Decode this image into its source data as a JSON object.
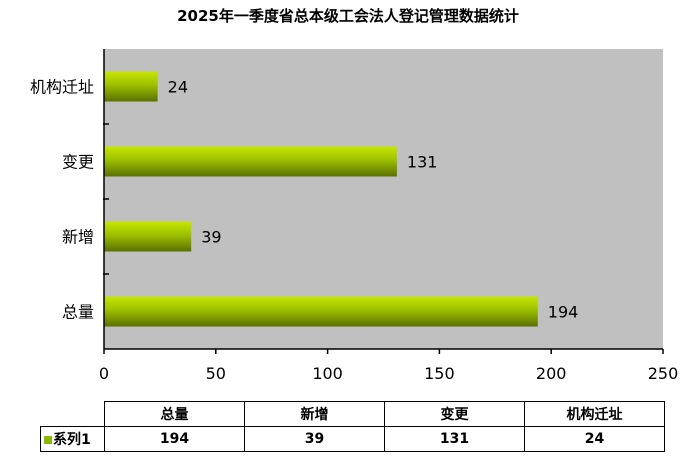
{
  "chart_data": {
    "type": "bar",
    "orientation": "horizontal",
    "title": "2025年一季度省总本级工会法人登记管理数据统计",
    "categories": [
      "总量",
      "新增",
      "变更",
      "机构迁址"
    ],
    "series": [
      {
        "name": "系列1",
        "values": [
          194,
          39,
          131,
          24
        ]
      }
    ],
    "data_labels": [
      "194",
      "39",
      "131",
      "24"
    ],
    "xlim": [
      0,
      250
    ],
    "xticks": [
      "0",
      "50",
      "100",
      "150",
      "200",
      "250"
    ],
    "grid": false,
    "plot_background": "#c0c0c0",
    "bar_color": "#8ab800",
    "data_table": {
      "columns": [
        "总量",
        "新增",
        "变更",
        "机构迁址"
      ],
      "row_label": "系列1",
      "values": [
        "194",
        "39",
        "131",
        "24"
      ]
    }
  }
}
